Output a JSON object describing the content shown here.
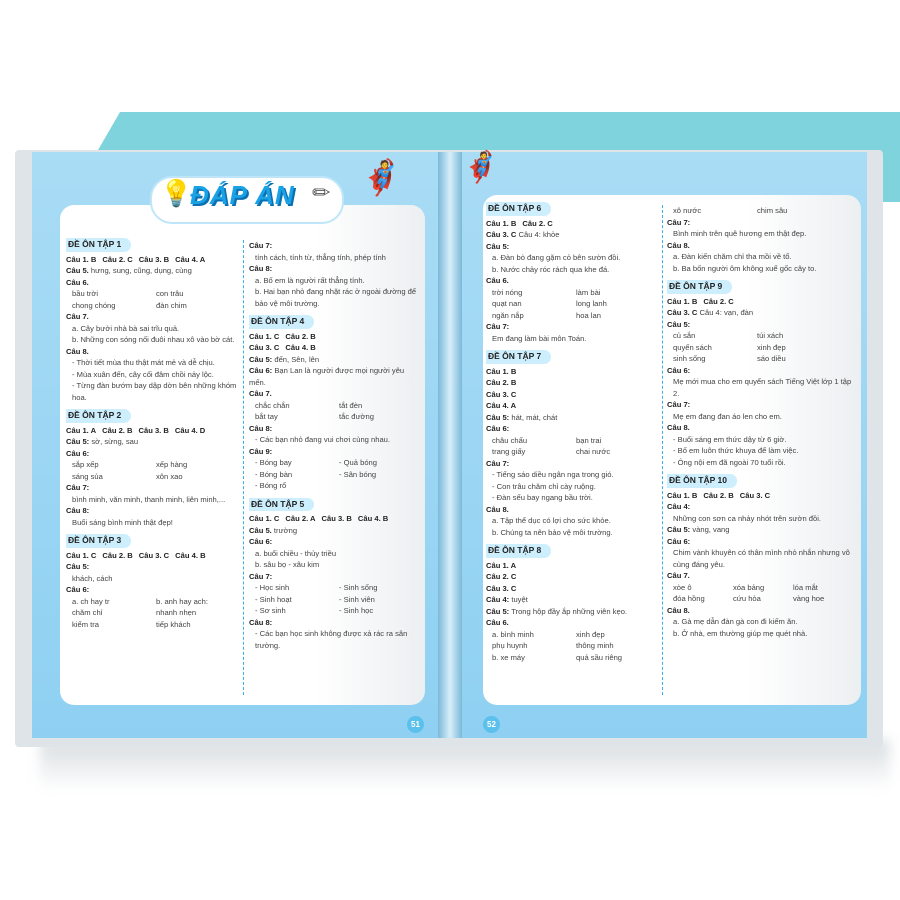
{
  "title": "ĐÁP ÁN",
  "page_numbers": [
    "51",
    "52"
  ],
  "columns": [
    [
      {
        "h": "ĐỀ ÔN TẬP 1"
      },
      {
        "ans": [
          "Câu 1. B",
          "Câu 2. C",
          "Câu 3. B",
          "Câu 4. A"
        ]
      },
      {
        "l": "Câu 5.",
        "t": "hưng, sung, cũng, dụng, cùng"
      },
      {
        "l": "Câu 6."
      },
      {
        "pair": [
          "bầu trời",
          "con trâu"
        ]
      },
      {
        "pair": [
          "chong chóng",
          "đàn chim"
        ]
      },
      {
        "l": "Câu 7."
      },
      {
        "t": "a. Cây bưởi nhà bà sai trĩu quả."
      },
      {
        "t": "b. Những con sóng nối đuôi nhau xô vào bờ cát."
      },
      {
        "l": "Câu 8."
      },
      {
        "t": "- Thời tiết mùa thu thật mát mẻ và dễ chịu."
      },
      {
        "t": "- Mùa xuân đến, cây cối đâm chồi nảy lộc."
      },
      {
        "t": "- Từng đàn bướm bay dập dờn bên những khóm hoa."
      },
      {
        "h": "ĐỀ ÔN TẬP 2"
      },
      {
        "ans": [
          "Câu 1. A",
          "Câu 2. B",
          "Câu 3. B",
          "Câu 4. D"
        ]
      },
      {
        "l": "Câu 5:",
        "t": "sờ, sừng, sau"
      },
      {
        "l": "Câu 6:"
      },
      {
        "pair": [
          "sắp xếp",
          "xếp hàng"
        ]
      },
      {
        "pair": [
          "sáng sủa",
          "xôn xao"
        ]
      },
      {
        "l": "Câu 7:"
      },
      {
        "t": "bình minh, văn minh, thanh minh, liên minh,..."
      },
      {
        "l": "Câu 8:"
      },
      {
        "t": "Buổi sáng bình minh thật đẹp!"
      },
      {
        "h": "ĐỀ ÔN TẬP 3"
      },
      {
        "ans": [
          "Câu 1. C",
          "Câu 2. B",
          "Câu 3. C",
          "Câu 4. B"
        ]
      },
      {
        "l": "Câu 5:"
      },
      {
        "t": "khách, cách"
      },
      {
        "l": "Câu 6:"
      },
      {
        "pair": [
          "a. ch hay tr",
          "b. anh hay ach:"
        ]
      },
      {
        "pair": [
          "chăm chỉ",
          "nhanh nhẹn"
        ]
      },
      {
        "pair": [
          "kiểm tra",
          "tiếp khách"
        ]
      }
    ],
    [
      {
        "l": "Câu 7:"
      },
      {
        "t": "tính cách, tính từ, thẳng tính, phép tính"
      },
      {
        "l": "Câu 8:"
      },
      {
        "t": "a. Bố em là người rất thẳng tính."
      },
      {
        "t": "b. Hai bạn nhỏ đang nhặt rác ở ngoài đường để bảo vệ môi trường."
      },
      {
        "h": "ĐỀ ÔN TẬP 4"
      },
      {
        "ans": [
          "Câu 1. C",
          "Câu 2. B"
        ]
      },
      {
        "ans": [
          "Câu 3. C",
          "Câu 4. B"
        ]
      },
      {
        "l": "Câu 5:",
        "t": "đến, Sên, lên"
      },
      {
        "l": "Câu 6:",
        "t": "Bạn Lan là người được mọi người yêu mến."
      },
      {
        "l": "Câu 7."
      },
      {
        "pair": [
          "chắc chắn",
          "tắt đèn"
        ]
      },
      {
        "pair": [
          "bắt tay",
          "tắc đường"
        ]
      },
      {
        "l": "Câu 8:"
      },
      {
        "t": "- Các bạn nhỏ đang vui chơi cùng nhau."
      },
      {
        "l": "Câu 9:"
      },
      {
        "pair": [
          "- Bóng bay",
          "- Quả bóng"
        ]
      },
      {
        "pair": [
          "- Bóng bàn",
          "- Sân bóng"
        ]
      },
      {
        "t": "- Bóng rổ"
      },
      {
        "h": "ĐỀ ÔN TẬP 5"
      },
      {
        "ans": [
          "Câu 1. C",
          "Câu 2. A",
          "Câu 3. B",
          "Câu 4. B"
        ]
      },
      {
        "l": "Câu 5.",
        "t": "trường"
      },
      {
        "l": "Câu 6:"
      },
      {
        "t": "a. buổi chiều - thủy triều"
      },
      {
        "t": "b. sâu bọ - xâu kim"
      },
      {
        "l": "Câu 7:"
      },
      {
        "pair": [
          "- Học sinh",
          "- Sinh sống"
        ]
      },
      {
        "pair": [
          "- Sinh hoạt",
          "- Sinh viên"
        ]
      },
      {
        "pair": [
          "- Sơ sinh",
          "- Sinh học"
        ]
      },
      {
        "l": "Câu 8:"
      },
      {
        "t": "- Các bạn học sinh không được xả rác ra sân trường."
      }
    ],
    [
      {
        "h": "ĐỀ ÔN TẬP 6"
      },
      {
        "ans": [
          "Câu 1. B",
          "Câu 2. C"
        ]
      },
      {
        "l": "Câu 3. C",
        "t": "Câu 4: khỏe"
      },
      {
        "l": "Câu 5:"
      },
      {
        "t": "a. Đàn bò đang gặm cỏ bên sườn đồi."
      },
      {
        "t": "b. Nước chảy róc rách qua khe đá."
      },
      {
        "l": "Câu 6."
      },
      {
        "pair": [
          "trời nóng",
          "làm bài"
        ]
      },
      {
        "pair": [
          "quạt nan",
          "long lanh"
        ]
      },
      {
        "pair": [
          "ngăn nắp",
          "hoa lan"
        ]
      },
      {
        "l": "Câu 7:"
      },
      {
        "t": "Em đang làm bài môn Toán."
      },
      {
        "h": "ĐỀ ÔN TẬP 7"
      },
      {
        "ans": [
          "Câu 1. B"
        ]
      },
      {
        "ans": [
          "Câu 2. B"
        ]
      },
      {
        "ans": [
          "Câu 3. C"
        ]
      },
      {
        "ans": [
          "Câu 4. A"
        ]
      },
      {
        "l": "Câu 5:",
        "t": "hát, mát, chát"
      },
      {
        "l": "Câu 6:"
      },
      {
        "pair": [
          "châu chấu",
          "bạn trai"
        ]
      },
      {
        "pair": [
          "trang giấy",
          "chai nước"
        ]
      },
      {
        "l": "Câu 7:"
      },
      {
        "t": "- Tiếng sáo diều ngân nga trong gió."
      },
      {
        "t": "- Con trâu chăm chỉ cày ruộng."
      },
      {
        "t": "- Đàn sếu bay ngang bầu trời."
      },
      {
        "l": "Câu 8."
      },
      {
        "t": "a. Tập thể dục có lợi cho sức khỏe."
      },
      {
        "t": "b. Chúng ta nên bảo vệ môi trường."
      },
      {
        "h": "ĐỀ ÔN TẬP 8"
      },
      {
        "ans": [
          "Câu 1. A"
        ]
      },
      {
        "ans": [
          "Câu 2. C"
        ]
      },
      {
        "ans": [
          "Câu 3. C"
        ]
      },
      {
        "l": "Câu 4:",
        "t": "tuyệt"
      },
      {
        "l": "Câu 5:",
        "t": "Trong hộp đầy ắp những viên kẹo."
      },
      {
        "l": "Câu 6."
      },
      {
        "pair": [
          "a. bình minh",
          "xinh đẹp"
        ]
      },
      {
        "pair": [
          "phụ huynh",
          "thông minh"
        ]
      },
      {
        "pair": [
          "b. xe máy",
          "quả sầu riêng"
        ]
      }
    ],
    [
      {
        "pair": [
          "xô nước",
          "chim sâu"
        ]
      },
      {
        "l": "Câu 7:"
      },
      {
        "t": "Bình minh trên quê hương em thật đẹp."
      },
      {
        "l": "Câu 8."
      },
      {
        "t": "a. Đàn kiến chăm chỉ tha mồi về tổ."
      },
      {
        "t": "b. Ba bốn người ôm không xuể gốc cây to."
      },
      {
        "h": "ĐỀ ÔN TẬP 9"
      },
      {
        "ans": [
          "Câu 1. B",
          "Câu 2. C"
        ]
      },
      {
        "l": "Câu 3. C",
        "t": "Câu 4: vạn, đàn"
      },
      {
        "l": "Câu 5:"
      },
      {
        "pair": [
          "củ sắn",
          "túi xách"
        ]
      },
      {
        "pair": [
          "quyển sách",
          "xinh đẹp"
        ]
      },
      {
        "pair": [
          "sinh sống",
          "sáo diều"
        ]
      },
      {
        "l": "Câu 6:"
      },
      {
        "t": "Mẹ mới mua cho em quyển sách Tiếng Việt lớp 1 tập 2."
      },
      {
        "l": "Câu 7:"
      },
      {
        "t": "Mẹ em đang đan áo len cho em."
      },
      {
        "l": "Câu 8."
      },
      {
        "t": "- Buổi sáng em thức dậy từ 6 giờ."
      },
      {
        "t": "- Bố em luôn thức khuya để làm việc."
      },
      {
        "t": "- Ông nội em đã ngoài 70 tuổi rồi."
      },
      {
        "h": "ĐỀ ÔN TẬP 10"
      },
      {
        "ans": [
          "Câu 1. B",
          "Câu 2. B",
          "Câu 3. C"
        ]
      },
      {
        "l": "Câu 4:"
      },
      {
        "t": "Những con sơn ca nhảy nhót trên sườn đồi."
      },
      {
        "l": "Câu 5:",
        "t": "vàng, vang"
      },
      {
        "l": "Câu 6:"
      },
      {
        "t": "Chim vành khuyên có thân mình nhỏ nhắn nhưng vô cùng đáng yêu."
      },
      {
        "l": "Câu 7."
      },
      {
        "triple": [
          "xòe ô",
          "xóa bảng",
          "lóa mắt"
        ]
      },
      {
        "triple": [
          "đóa hồng",
          "cứu hỏa",
          "vàng hoe"
        ]
      },
      {
        "l": "Câu 8."
      },
      {
        "t": "a. Gà mẹ dẫn đàn gà con đi kiếm ăn."
      },
      {
        "t": "b. Ở nhà, em thường giúp mẹ quét nhà."
      }
    ]
  ],
  "colors": {
    "page_blue": "#a9dcf5",
    "heading_bg": "#cdeefc",
    "accent": "#19a2e6",
    "teal": "#7fd3dc"
  }
}
